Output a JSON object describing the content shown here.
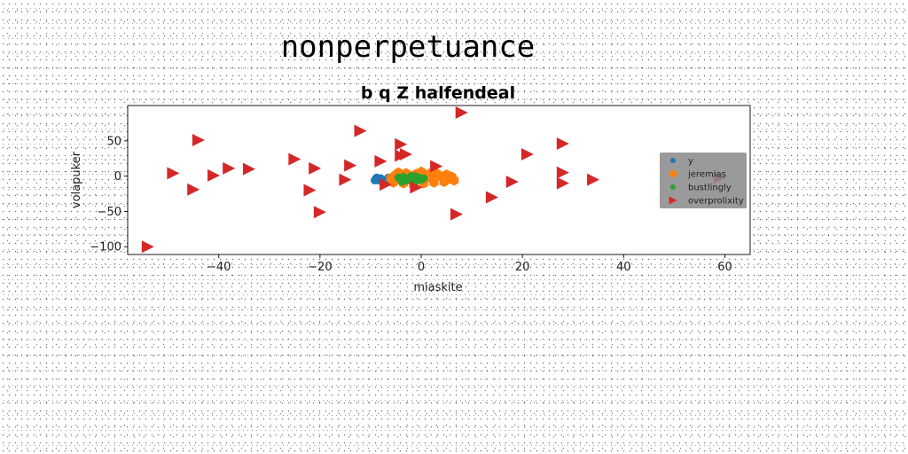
{
  "chart_data": {
    "type": "scatter",
    "suptitle": "nonperpetuance",
    "title": "b q Z halfendeal",
    "xlabel": "miaskite",
    "ylabel": "volapuker",
    "xlim": [
      -58,
      65
    ],
    "ylim": [
      -111,
      100
    ],
    "xticks": [
      -40,
      -20,
      0,
      20,
      40,
      60
    ],
    "yticks": [
      -100,
      -50,
      0,
      50
    ],
    "xtick_labels": [
      "−40",
      "−20",
      "0",
      "20",
      "40",
      "60"
    ],
    "ytick_labels": [
      "−100",
      "−50",
      "0",
      "50"
    ],
    "grid": false,
    "legend_position": "center-right",
    "series": [
      {
        "name": "y",
        "color": "#1f77b4",
        "marker": "circle",
        "points": [
          [
            -9,
            -4
          ],
          [
            -8.5,
            -6
          ],
          [
            -8,
            -3
          ],
          [
            -7.5,
            -7
          ],
          [
            -7,
            -5
          ],
          [
            -6.5,
            -2
          ],
          [
            -6,
            -6
          ],
          [
            -8.8,
            -2
          ],
          [
            -7.2,
            -8
          ],
          [
            -6.2,
            -4
          ],
          [
            -5.8,
            -3
          ],
          [
            -9.2,
            -6
          ]
        ]
      },
      {
        "name": "jeremias",
        "color": "#ff7f0e",
        "marker": "hexagon",
        "points": [
          [
            -6,
            -3
          ],
          [
            -5,
            2
          ],
          [
            -4,
            -6
          ],
          [
            -3,
            4
          ],
          [
            -2,
            -2
          ],
          [
            -1,
            3
          ],
          [
            0,
            -5
          ],
          [
            1,
            1
          ],
          [
            2,
            -3
          ],
          [
            3,
            4
          ],
          [
            4,
            -1
          ],
          [
            5,
            2
          ],
          [
            5.5,
            -4
          ],
          [
            6,
            -1
          ],
          [
            6.5,
            -6
          ],
          [
            -5.5,
            -9
          ],
          [
            -3.5,
            -10
          ],
          [
            -1.5,
            -12
          ],
          [
            0.5,
            -10
          ],
          [
            2.5,
            -9
          ],
          [
            4.5,
            -8
          ],
          [
            -4.5,
            5
          ],
          [
            0,
            6
          ],
          [
            2,
            5
          ],
          [
            -2.5,
            1
          ]
        ]
      },
      {
        "name": "bustlingly",
        "color": "#2ca02c",
        "marker": "circle",
        "points": [
          [
            -4.5,
            -2
          ],
          [
            -4,
            -5
          ],
          [
            -3.5,
            -1
          ],
          [
            -3,
            -6
          ],
          [
            -2.5,
            -3
          ],
          [
            -2,
            0
          ],
          [
            -1.5,
            -4
          ],
          [
            -1,
            -7
          ],
          [
            -0.5,
            -2
          ],
          [
            0,
            -5
          ],
          [
            -3.8,
            -8
          ],
          [
            -2.2,
            -6
          ],
          [
            0.5,
            -3
          ],
          [
            -1.2,
            0
          ]
        ]
      },
      {
        "name": "overprolixity",
        "color": "#d62728",
        "marker": "triangle-right",
        "points": [
          [
            -54,
            -100
          ],
          [
            -49,
            4
          ],
          [
            -45,
            -19
          ],
          [
            -44,
            51
          ],
          [
            -41,
            1
          ],
          [
            -38,
            11
          ],
          [
            -34,
            10
          ],
          [
            -25,
            24
          ],
          [
            -22,
            -20
          ],
          [
            -21,
            11
          ],
          [
            -20,
            -51
          ],
          [
            -15,
            -5
          ],
          [
            -14,
            15
          ],
          [
            -12,
            64
          ],
          [
            -8,
            21
          ],
          [
            -7,
            -12
          ],
          [
            -4,
            29
          ],
          [
            -4,
            45
          ],
          [
            -3,
            31
          ],
          [
            -1,
            -16
          ],
          [
            3,
            14
          ],
          [
            7,
            -54
          ],
          [
            8,
            90
          ],
          [
            14,
            -30
          ],
          [
            18,
            -8
          ],
          [
            21,
            31
          ],
          [
            28,
            46
          ],
          [
            28,
            5
          ],
          [
            28,
            -10
          ],
          [
            34,
            -5
          ],
          [
            59,
            -2
          ]
        ]
      }
    ]
  }
}
